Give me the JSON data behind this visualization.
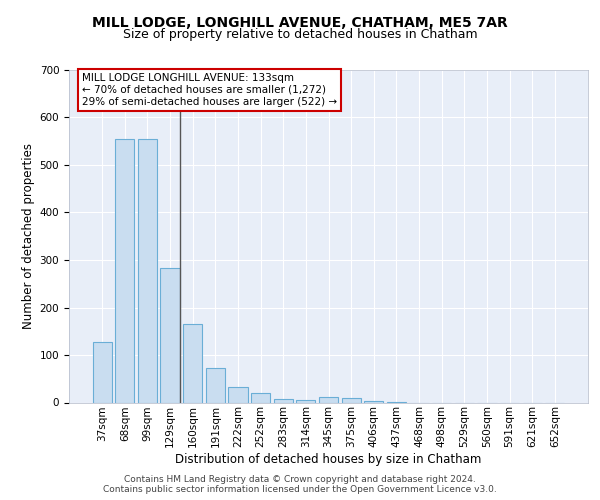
{
  "title1": "MILL LODGE, LONGHILL AVENUE, CHATHAM, ME5 7AR",
  "title2": "Size of property relative to detached houses in Chatham",
  "xlabel": "Distribution of detached houses by size in Chatham",
  "ylabel": "Number of detached properties",
  "categories": [
    "37sqm",
    "68sqm",
    "99sqm",
    "129sqm",
    "160sqm",
    "191sqm",
    "222sqm",
    "252sqm",
    "283sqm",
    "314sqm",
    "345sqm",
    "375sqm",
    "406sqm",
    "437sqm",
    "468sqm",
    "498sqm",
    "529sqm",
    "560sqm",
    "591sqm",
    "621sqm",
    "652sqm"
  ],
  "values": [
    128,
    555,
    555,
    283,
    165,
    72,
    33,
    20,
    8,
    5,
    12,
    10,
    3,
    2,
    0,
    0,
    0,
    0,
    0,
    0,
    0
  ],
  "bar_color": "#c9ddf0",
  "bar_edge_color": "#6aaed6",
  "vline_x": 3.425,
  "vline_color": "#555555",
  "annotation_text": "MILL LODGE LONGHILL AVENUE: 133sqm\n← 70% of detached houses are smaller (1,272)\n29% of semi-detached houses are larger (522) →",
  "ann_facecolor": "#ffffff",
  "ann_edgecolor": "#cc0000",
  "ylim": [
    0,
    700
  ],
  "yticks": [
    0,
    100,
    200,
    300,
    400,
    500,
    600,
    700
  ],
  "axes_bg": "#e8eef8",
  "grid_color": "#ffffff",
  "title1_fontsize": 10,
  "title2_fontsize": 9,
  "xlabel_fontsize": 8.5,
  "ylabel_fontsize": 8.5,
  "tick_fontsize": 7.5,
  "ann_fontsize": 7.5,
  "footer_text": "Contains HM Land Registry data © Crown copyright and database right 2024.\nContains public sector information licensed under the Open Government Licence v3.0.",
  "footer_fontsize": 6.5
}
